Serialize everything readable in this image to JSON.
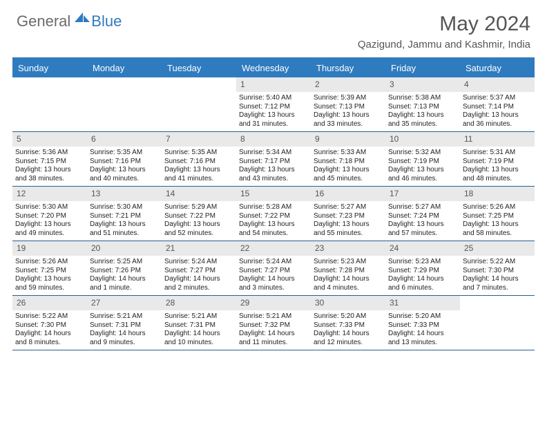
{
  "logo": {
    "general": "General",
    "blue": "Blue"
  },
  "title": "May 2024",
  "location": "Qazigund, Jammu and Kashmir, India",
  "dayHeaders": [
    "Sunday",
    "Monday",
    "Tuesday",
    "Wednesday",
    "Thursday",
    "Friday",
    "Saturday"
  ],
  "colors": {
    "accent": "#2f7bbf",
    "cellHeader": "#e9e9e9",
    "border": "#2a5e90",
    "text": "#333",
    "muted": "#555"
  },
  "startOffset": 3,
  "days": [
    {
      "n": "1",
      "sunrise": "5:40 AM",
      "sunset": "7:12 PM",
      "daylight": "13 hours and 31 minutes."
    },
    {
      "n": "2",
      "sunrise": "5:39 AM",
      "sunset": "7:13 PM",
      "daylight": "13 hours and 33 minutes."
    },
    {
      "n": "3",
      "sunrise": "5:38 AM",
      "sunset": "7:13 PM",
      "daylight": "13 hours and 35 minutes."
    },
    {
      "n": "4",
      "sunrise": "5:37 AM",
      "sunset": "7:14 PM",
      "daylight": "13 hours and 36 minutes."
    },
    {
      "n": "5",
      "sunrise": "5:36 AM",
      "sunset": "7:15 PM",
      "daylight": "13 hours and 38 minutes."
    },
    {
      "n": "6",
      "sunrise": "5:35 AM",
      "sunset": "7:16 PM",
      "daylight": "13 hours and 40 minutes."
    },
    {
      "n": "7",
      "sunrise": "5:35 AM",
      "sunset": "7:16 PM",
      "daylight": "13 hours and 41 minutes."
    },
    {
      "n": "8",
      "sunrise": "5:34 AM",
      "sunset": "7:17 PM",
      "daylight": "13 hours and 43 minutes."
    },
    {
      "n": "9",
      "sunrise": "5:33 AM",
      "sunset": "7:18 PM",
      "daylight": "13 hours and 45 minutes."
    },
    {
      "n": "10",
      "sunrise": "5:32 AM",
      "sunset": "7:19 PM",
      "daylight": "13 hours and 46 minutes."
    },
    {
      "n": "11",
      "sunrise": "5:31 AM",
      "sunset": "7:19 PM",
      "daylight": "13 hours and 48 minutes."
    },
    {
      "n": "12",
      "sunrise": "5:30 AM",
      "sunset": "7:20 PM",
      "daylight": "13 hours and 49 minutes."
    },
    {
      "n": "13",
      "sunrise": "5:30 AM",
      "sunset": "7:21 PM",
      "daylight": "13 hours and 51 minutes."
    },
    {
      "n": "14",
      "sunrise": "5:29 AM",
      "sunset": "7:22 PM",
      "daylight": "13 hours and 52 minutes."
    },
    {
      "n": "15",
      "sunrise": "5:28 AM",
      "sunset": "7:22 PM",
      "daylight": "13 hours and 54 minutes."
    },
    {
      "n": "16",
      "sunrise": "5:27 AM",
      "sunset": "7:23 PM",
      "daylight": "13 hours and 55 minutes."
    },
    {
      "n": "17",
      "sunrise": "5:27 AM",
      "sunset": "7:24 PM",
      "daylight": "13 hours and 57 minutes."
    },
    {
      "n": "18",
      "sunrise": "5:26 AM",
      "sunset": "7:25 PM",
      "daylight": "13 hours and 58 minutes."
    },
    {
      "n": "19",
      "sunrise": "5:26 AM",
      "sunset": "7:25 PM",
      "daylight": "13 hours and 59 minutes."
    },
    {
      "n": "20",
      "sunrise": "5:25 AM",
      "sunset": "7:26 PM",
      "daylight": "14 hours and 1 minute."
    },
    {
      "n": "21",
      "sunrise": "5:24 AM",
      "sunset": "7:27 PM",
      "daylight": "14 hours and 2 minutes."
    },
    {
      "n": "22",
      "sunrise": "5:24 AM",
      "sunset": "7:27 PM",
      "daylight": "14 hours and 3 minutes."
    },
    {
      "n": "23",
      "sunrise": "5:23 AM",
      "sunset": "7:28 PM",
      "daylight": "14 hours and 4 minutes."
    },
    {
      "n": "24",
      "sunrise": "5:23 AM",
      "sunset": "7:29 PM",
      "daylight": "14 hours and 6 minutes."
    },
    {
      "n": "25",
      "sunrise": "5:22 AM",
      "sunset": "7:30 PM",
      "daylight": "14 hours and 7 minutes."
    },
    {
      "n": "26",
      "sunrise": "5:22 AM",
      "sunset": "7:30 PM",
      "daylight": "14 hours and 8 minutes."
    },
    {
      "n": "27",
      "sunrise": "5:21 AM",
      "sunset": "7:31 PM",
      "daylight": "14 hours and 9 minutes."
    },
    {
      "n": "28",
      "sunrise": "5:21 AM",
      "sunset": "7:31 PM",
      "daylight": "14 hours and 10 minutes."
    },
    {
      "n": "29",
      "sunrise": "5:21 AM",
      "sunset": "7:32 PM",
      "daylight": "14 hours and 11 minutes."
    },
    {
      "n": "30",
      "sunrise": "5:20 AM",
      "sunset": "7:33 PM",
      "daylight": "14 hours and 12 minutes."
    },
    {
      "n": "31",
      "sunrise": "5:20 AM",
      "sunset": "7:33 PM",
      "daylight": "14 hours and 13 minutes."
    }
  ],
  "labels": {
    "sunrise": "Sunrise:",
    "sunset": "Sunset:",
    "daylight": "Daylight:"
  }
}
